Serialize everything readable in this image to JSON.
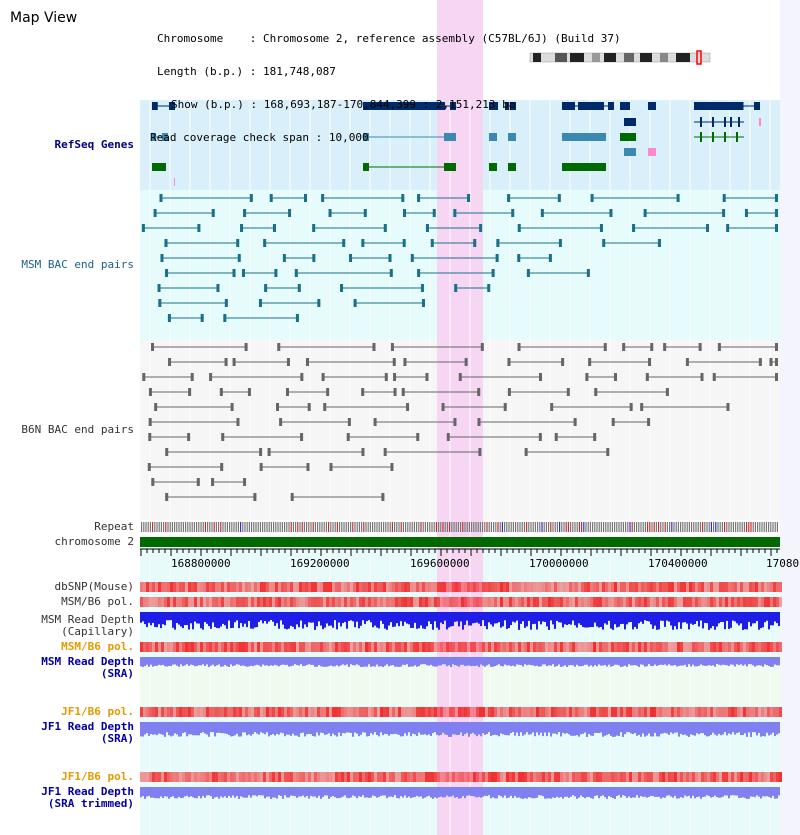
{
  "title": "Map View",
  "info": {
    "chromosome_key": "Chromosome",
    "chromosome_val": "Chromosome 2, reference assembly (C57BL/6J) (Build 37)",
    "length_key": "Length (b.p.)",
    "length_val": "181,748,087",
    "show_key": "Show (b.p.)",
    "show_val": "168,693,187-170,844,399 : 2,151,213 bp",
    "span_key": "Read coverage check span",
    "span_val": "10,000"
  },
  "tracks": {
    "refseq": "RefSeq Genes",
    "msm_bac": "MSM BAC end pairs",
    "b6n_bac": "B6N BAC end pairs",
    "repeat": "Repeat",
    "chromosome": "chromosome 2",
    "dbsnp": "dbSNP(Mouse)",
    "msm_b6_pol": "MSM/B6 pol.",
    "msm_depth_cap_1": "MSM Read Depth",
    "msm_depth_cap_2": "(Capillary)",
    "msm_b6_pol2": "MSM/B6 pol.",
    "msm_depth_sra_1": "MSM Read Depth",
    "msm_depth_sra_2": "(SRA)",
    "jf1_b6_pol": "JF1/B6 pol.",
    "jf1_depth_sra_1": "JF1 Read Depth",
    "jf1_depth_sra_2": "(SRA)",
    "jf1_b6_pol2": "JF1/B6 pol.",
    "jf1_depth_trim_1": "JF1 Read Depth",
    "jf1_depth_trim_2": "(SRA trimmed)"
  },
  "axis": {
    "ticks": [
      "168800000",
      "169200000",
      "169600000",
      "170000000",
      "170400000",
      "17080"
    ]
  },
  "colors": {
    "refseq_bg": "#d9f0fb",
    "msm_bg": "#e6fbfb",
    "highlight": "#f7d6f4",
    "gene_dark": "#002a6a",
    "gene_mid": "#3b88b0",
    "gene_green": "#006a00",
    "msm_line": "#1a6f8a",
    "b6n_line": "#666666",
    "chromosome_bar": "#006a00",
    "pol_red": "#f06060",
    "depth_blue": "#1e1ee6",
    "depth_light": "#8080f0"
  }
}
